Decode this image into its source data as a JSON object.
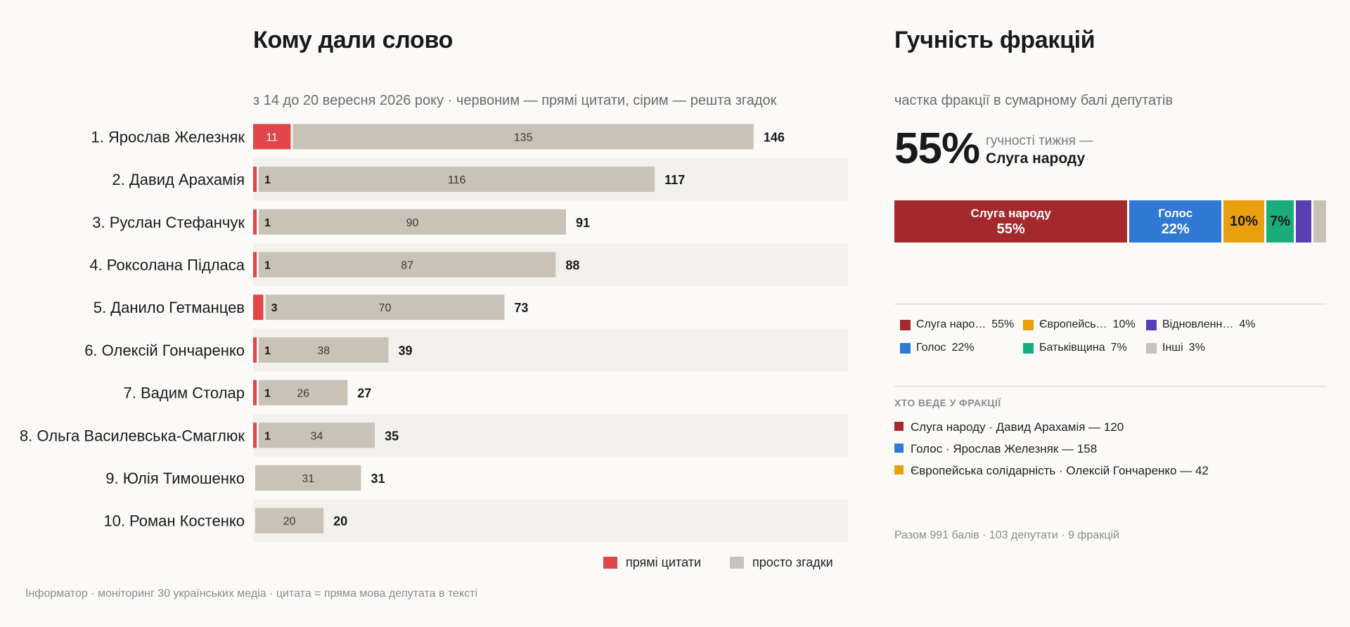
{
  "left": {
    "title": "Кому дали слово",
    "subtitle": "з 14 до 20 вересня 2026 року · червоним — прямі цитати, сірим — решта згадок",
    "legend": {
      "quotes_label": "прямі цитати",
      "mentions_label": "просто згадки"
    },
    "footer": "Інформатор · моніторинг 30 українських медіа · цитата = пряма мова депутата в тексті"
  },
  "colors": {
    "quotes": "#e0474c",
    "mentions": "#c9c2b6",
    "row_stripe": "#f3f1ed",
    "servant": "#a4292c",
    "holos": "#2f78d3",
    "es": "#eaa00c",
    "batk": "#1aad7c",
    "vidn": "#5a3fb3",
    "others": "#c9c2b6"
  },
  "chart_data": [
    {
      "type": "bar",
      "orientation": "horizontal",
      "stacked": true,
      "title": "Кому дали слово",
      "subtitle": "з 14 до 20 вересня 2026 року · червоним — прямі цитати, сірим — решта згадок",
      "categories": [
        "1. Ярослав Железняк",
        "2. Давид Арахамія",
        "3. Руслан Стефанчук",
        "4. Роксолана Підласа",
        "5. Данило Гетманцев",
        "6. Олексій Гончаренко",
        "7. Вадим Столар",
        "8. Ольга Василевська-Смаглюк",
        "9. Юлія Тимошенко",
        "10. Роман Костенко"
      ],
      "series": [
        {
          "name": "прямі цитати",
          "values": [
            11,
            1,
            1,
            1,
            3,
            1,
            1,
            1,
            0,
            0
          ]
        },
        {
          "name": "просто згадки",
          "values": [
            135,
            116,
            90,
            87,
            70,
            38,
            26,
            34,
            31,
            20
          ]
        }
      ],
      "totals": [
        146,
        117,
        91,
        88,
        73,
        39,
        27,
        35,
        31,
        20
      ],
      "xlim": [
        0,
        160
      ],
      "grid": false,
      "legend": "bottom-right"
    },
    {
      "type": "bar",
      "orientation": "horizontal",
      "stacked": true,
      "title": "Гучність фракцій",
      "subtitle": "частка фракції в сумарному балі депутатів",
      "unit": "%",
      "categories": [
        "Слуга народу",
        "Голос",
        "Європейська солідарність",
        "Батьківщина",
        "Відновлення",
        "Інші"
      ],
      "values": [
        55,
        22,
        10,
        7,
        4,
        3
      ]
    }
  ],
  "right": {
    "title": "Гучність фракцій",
    "subtitle": "частка фракції в сумарному балі депутатів",
    "headline_value": "55%",
    "headline_caption": "гучності тижня —",
    "headline_party": "Слуга народу",
    "share_bar": [
      {
        "name": "Слуга народу",
        "pct": "55%",
        "value": 55,
        "color_key": "servant",
        "label_mode": "full"
      },
      {
        "name": "Голос",
        "pct": "22%",
        "value": 22,
        "color_key": "holos",
        "label_mode": "full"
      },
      {
        "name": "Європейська солідарність",
        "pct": "10%",
        "value": 10,
        "color_key": "es",
        "label_mode": "pct"
      },
      {
        "name": "Батьківщина",
        "pct": "7%",
        "value": 7,
        "color_key": "batk",
        "label_mode": "pct"
      },
      {
        "name": "Відновлення",
        "pct": "4%",
        "value": 4,
        "color_key": "vidn",
        "label_mode": "none"
      },
      {
        "name": "Інші",
        "pct": "3%",
        "value": 3,
        "color_key": "others",
        "label_mode": "none"
      }
    ],
    "legend": [
      {
        "label": "Слуга наро…",
        "pct": "55%",
        "color_key": "servant"
      },
      {
        "label": "Голос",
        "pct": "22%",
        "color_key": "holos"
      },
      {
        "label": "Європейсь…",
        "pct": "10%",
        "color_key": "es"
      },
      {
        "label": "Батьківщина",
        "pct": "7%",
        "color_key": "batk"
      },
      {
        "label": "Відновленн…",
        "pct": "4%",
        "color_key": "vidn"
      },
      {
        "label": "Інші",
        "pct": "3%",
        "color_key": "others"
      }
    ],
    "leaders_heading": "ХТО ВЕДЕ У ФРАКЦІЇ",
    "leaders": [
      {
        "text": "Слуга народу · Давид Арахамія — 120",
        "color_key": "servant"
      },
      {
        "text": "Голос · Ярослав Железняк — 158",
        "color_key": "holos"
      },
      {
        "text": "Європейська солідарність · Олексій Гончаренко — 42",
        "color_key": "es"
      }
    ],
    "footer": "Разом 991 балів · 103 депутати · 9 фракцій"
  }
}
